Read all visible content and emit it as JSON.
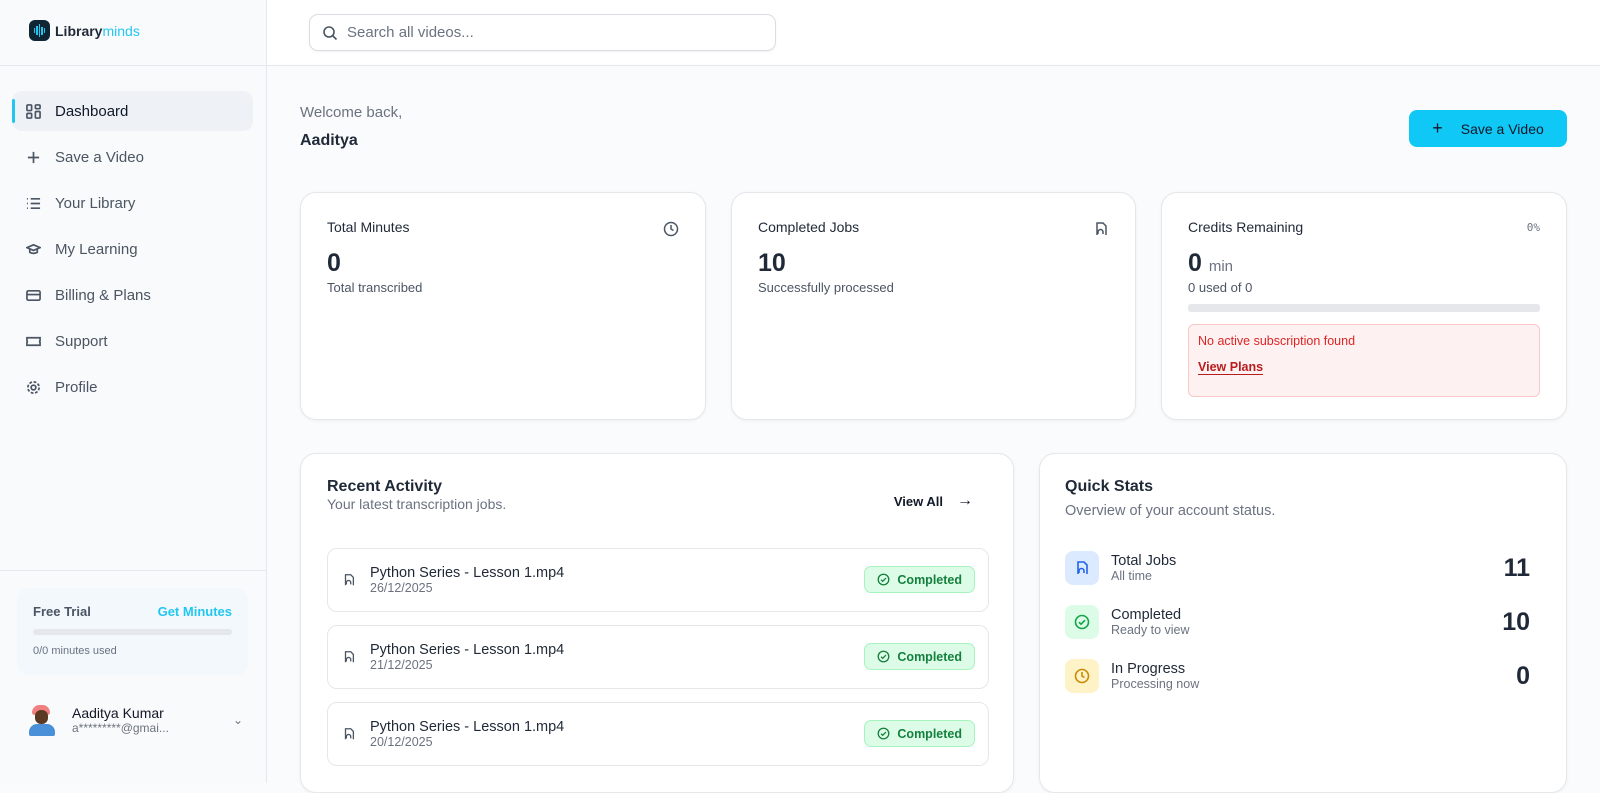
{
  "brand": {
    "name_bold": "Library",
    "name_light": "minds"
  },
  "search": {
    "placeholder": "Search all videos..."
  },
  "sidebar": {
    "items": [
      {
        "label": "Dashboard",
        "icon": "grid-icon",
        "active": true
      },
      {
        "label": "Save a Video",
        "icon": "plus-icon"
      },
      {
        "label": "Your Library",
        "icon": "list-icon"
      },
      {
        "label": "My Learning",
        "icon": "graduation-cap-icon"
      },
      {
        "label": "Billing & Plans",
        "icon": "credit-card-icon"
      },
      {
        "label": "Support",
        "icon": "ticket-icon"
      },
      {
        "label": "Profile",
        "icon": "gear-icon"
      }
    ],
    "trial": {
      "label": "Free Trial",
      "action": "Get Minutes",
      "usage": "0/0 minutes used",
      "progress": 0
    },
    "user": {
      "name": "Aaditya Kumar",
      "email": "a*********@gmai..."
    }
  },
  "header": {
    "welcome": "Welcome back,",
    "name": "Aaditya",
    "save_button": "Save a Video"
  },
  "stats": [
    {
      "title": "Total Minutes",
      "value": "0",
      "sub": "Total transcribed",
      "icon": "clock-icon"
    },
    {
      "title": "Completed Jobs",
      "value": "10",
      "sub": "Successfully processed",
      "icon": "file-audio-icon"
    },
    {
      "title": "Credits Remaining",
      "value": "0",
      "unit": "min",
      "sub": "0 used of 0",
      "percent": "0%",
      "progress": 0,
      "alert": "No active subscription found",
      "alert_link": "View Plans"
    }
  ],
  "recent": {
    "title": "Recent Activity",
    "subtitle": "Your latest transcription jobs.",
    "view_all": "View All",
    "jobs": [
      {
        "name": "Python Series - Lesson 1.mp4",
        "date": "26/12/2025",
        "status": "Completed"
      },
      {
        "name": "Python Series - Lesson 1.mp4",
        "date": "21/12/2025",
        "status": "Completed"
      },
      {
        "name": "Python Series - Lesson 1.mp4",
        "date": "20/12/2025",
        "status": "Completed"
      }
    ]
  },
  "quick": {
    "title": "Quick Stats",
    "subtitle": "Overview of your account status.",
    "items": [
      {
        "label": "Total Jobs",
        "sub": "All time",
        "value": "11",
        "color": "#2563eb"
      },
      {
        "label": "Completed",
        "sub": "Ready to view",
        "value": "10",
        "color": "#16a34a"
      },
      {
        "label": "In Progress",
        "sub": "Processing now",
        "value": "0",
        "color": "#ca8a04"
      }
    ]
  }
}
